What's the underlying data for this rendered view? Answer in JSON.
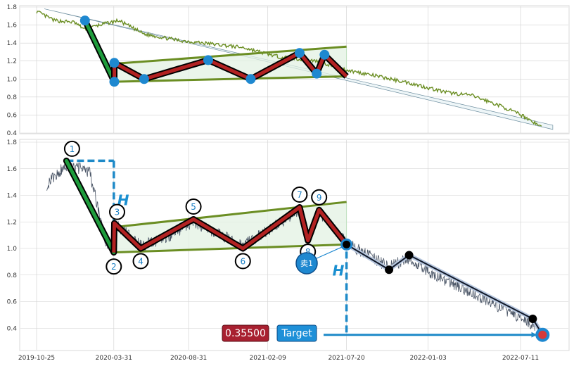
{
  "chart_data": {
    "type": "line",
    "title": "",
    "xlabel": "",
    "ylabel": "",
    "colors": {
      "top_price_line": "#6b8e23",
      "bottom_price_line": "#4a5566",
      "pattern_zigzag": "#b22222",
      "pattern_outline": "#000000",
      "drop_leg": "#1e9c3c",
      "channel_lines": "#6b8e23",
      "channel_fill": "#e3f2e3",
      "marker_blue": "#1e88d0",
      "measure_dash": "#1e8ac8",
      "price_box": "#a82030",
      "target_box": "#1e90d8",
      "grid": "#cfcfcf"
    },
    "top_panel": {
      "ylim": [
        0.4,
        1.8
      ],
      "yticks": [
        "0.4",
        "0.6",
        "0.8",
        "1.0",
        "1.2",
        "1.4",
        "1.6",
        "1.8"
      ],
      "trend_line": {
        "start": [
          "2019-11-10",
          1.78
        ],
        "end": [
          "2022-09-15",
          0.44
        ]
      },
      "drop_leg": {
        "start": [
          "2020-02-01",
          1.65
        ],
        "end": [
          "2020-04-01",
          0.97
        ]
      },
      "channel_upper": {
        "start": [
          "2020-04-01",
          1.17
        ],
        "end": [
          "2021-07-20",
          1.36
        ]
      },
      "channel_lower": {
        "start": [
          "2020-04-01",
          0.97
        ],
        "end": [
          "2021-07-20",
          1.03
        ]
      },
      "pattern_points": [
        {
          "date": "2020-04-01",
          "value": 0.97
        },
        {
          "date": "2020-04-01",
          "value": 1.18
        },
        {
          "date": "2020-06-01",
          "value": 1.0
        },
        {
          "date": "2020-10-10",
          "value": 1.21
        },
        {
          "date": "2021-01-05",
          "value": 1.0
        },
        {
          "date": "2021-04-15",
          "value": 1.29
        },
        {
          "date": "2021-05-20",
          "value": 1.06
        },
        {
          "date": "2021-06-05",
          "value": 1.27
        },
        {
          "date": "2021-07-20",
          "value": 1.03
        }
      ],
      "marker_indices": [
        1,
        2,
        3,
        4,
        5,
        6,
        7
      ]
    },
    "bottom_panel": {
      "ylim": [
        0.2,
        1.8
      ],
      "yticks": [
        "0.4",
        "0.6",
        "0.8",
        "1.0",
        "1.2",
        "1.4",
        "1.6",
        "1.8"
      ],
      "xticks": [
        {
          "date": "2019-10-25",
          "label": "2019-10-25"
        },
        {
          "date": "2020-03-31",
          "label": "2020-03-31"
        },
        {
          "date": "2020-08-31",
          "label": "2020-08-31"
        },
        {
          "date": "2021-02-09",
          "label": "2021-02-09"
        },
        {
          "date": "2021-07-20",
          "label": "2021-07-20"
        },
        {
          "date": "2022-01-03",
          "label": "2022-01-03"
        },
        {
          "date": "2022-07-11",
          "label": "2022-07-11"
        }
      ],
      "drop_leg": {
        "start": [
          "2019-12-25",
          1.66
        ],
        "end": [
          "2020-03-31",
          0.97
        ]
      },
      "channel_upper": {
        "start": [
          "2020-03-31",
          1.16
        ],
        "end": [
          "2021-07-20",
          1.35
        ]
      },
      "channel_lower": {
        "start": [
          "2020-03-31",
          0.97
        ],
        "end": [
          "2021-07-20",
          1.03
        ]
      },
      "pattern_points": [
        {
          "label": "1",
          "date": "2019-12-25",
          "value": 1.66
        },
        {
          "label": "2",
          "date": "2020-03-31",
          "value": 0.97
        },
        {
          "label": "3",
          "date": "2020-04-01",
          "value": 1.19
        },
        {
          "label": "4",
          "date": "2020-05-25",
          "value": 1.0
        },
        {
          "label": "5",
          "date": "2020-09-10",
          "value": 1.22
        },
        {
          "label": "6",
          "date": "2020-12-20",
          "value": 1.0
        },
        {
          "label": "7",
          "date": "2021-04-15",
          "value": 1.31
        },
        {
          "label": "8",
          "date": "2021-05-02",
          "value": 1.06
        },
        {
          "label": "9",
          "date": "2021-05-25",
          "value": 1.29
        },
        {
          "label": "",
          "date": "2021-07-20",
          "value": 1.03
        }
      ],
      "breakdown_path": [
        {
          "date": "2021-07-20",
          "value": 1.03
        },
        {
          "date": "2021-10-15",
          "value": 0.84
        },
        {
          "date": "2021-11-25",
          "value": 0.95
        },
        {
          "date": "2022-08-05",
          "value": 0.47
        },
        {
          "date": "2022-08-25",
          "value": 0.35
        }
      ],
      "black_dots": [
        {
          "date": "2021-07-20",
          "value": 1.03
        },
        {
          "date": "2021-10-15",
          "value": 0.84
        },
        {
          "date": "2021-11-25",
          "value": 0.95
        },
        {
          "date": "2022-08-05",
          "value": 0.47
        }
      ],
      "sell_marker": {
        "label": "卖1",
        "date": "2021-07-20",
        "value": 1.03
      },
      "target_marker": {
        "date": "2022-08-25",
        "value": 0.35
      },
      "measure": {
        "label": "H",
        "h1": {
          "date": "2020-03-31",
          "top": 1.66,
          "bottom": 0.97
        },
        "h2": {
          "date": "2021-07-20",
          "top": 1.03,
          "bottom": 0.35
        }
      },
      "price_box_label": "0.35500",
      "target_box_label": "Target"
    }
  }
}
